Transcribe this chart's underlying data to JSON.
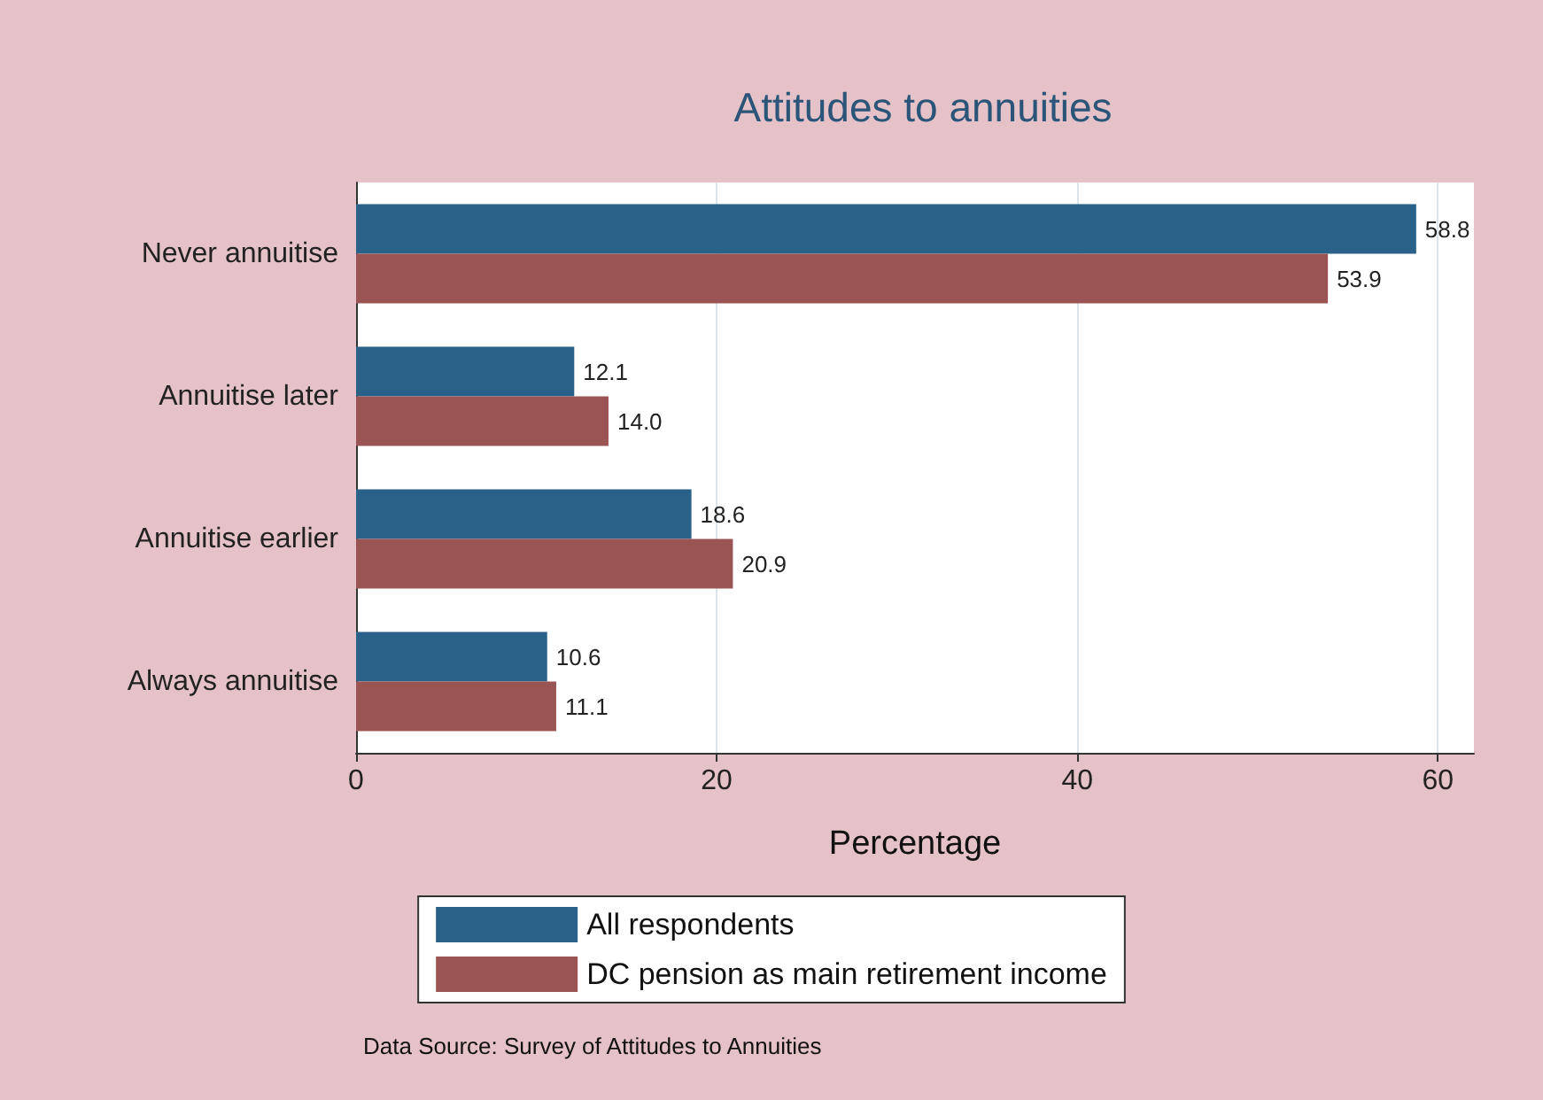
{
  "chart_data": {
    "type": "bar",
    "orientation": "horizontal",
    "title": "Attitudes to annuities",
    "xlabel": "Percentage",
    "categories": [
      "Never annuitise",
      "Annuitise later",
      "Annuitise earlier",
      "Always annuitise"
    ],
    "series": [
      {
        "name": "All respondents",
        "color": "#2a6189",
        "values": [
          58.8,
          12.1,
          18.6,
          10.6
        ],
        "value_labels": [
          "58.8",
          "12.1",
          "18.6",
          "10.6"
        ]
      },
      {
        "name": "DC pension as main retirement income",
        "color": "#9b5454",
        "values": [
          53.9,
          14.0,
          20.9,
          11.1
        ],
        "value_labels": [
          "53.9",
          "14.0",
          "20.9",
          "11.1"
        ]
      }
    ],
    "xlim": [
      0,
      62
    ],
    "xticks": [
      0,
      20,
      40,
      60
    ],
    "grid": "x",
    "legend": "bottom",
    "annotations": [
      "Data Source: Survey of Attitudes to Annuities"
    ]
  }
}
